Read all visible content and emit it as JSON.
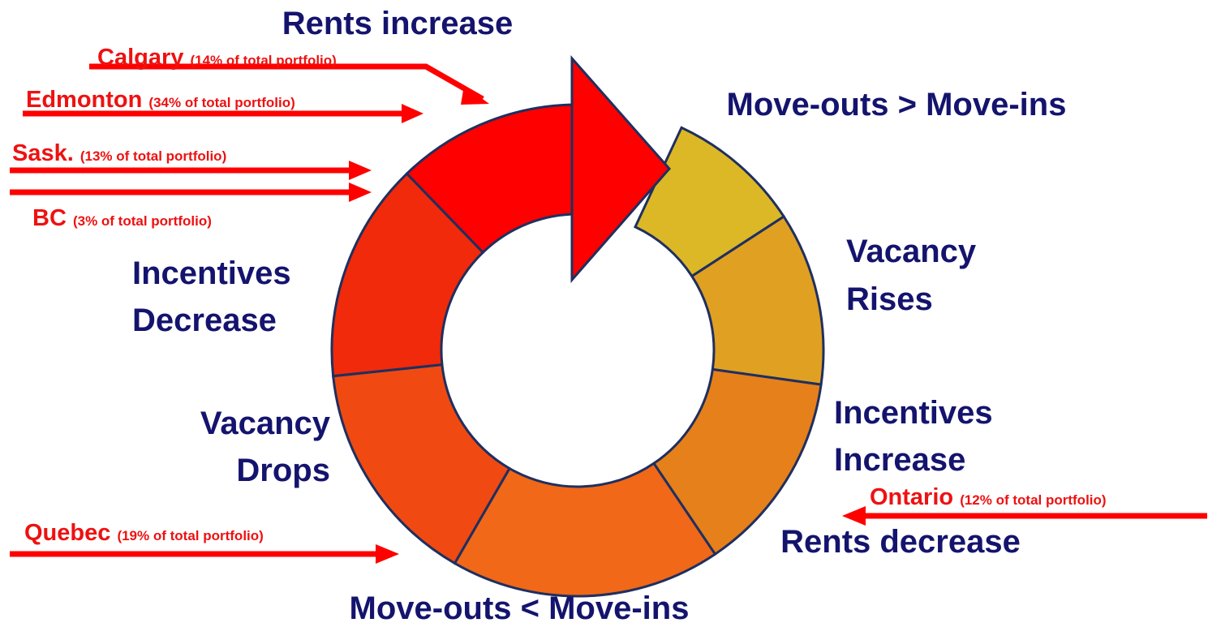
{
  "title": "Rents increase",
  "stages": [
    {
      "lines": [
        "Move-outs > Move-ins"
      ]
    },
    {
      "lines": [
        "Vacancy",
        "Rises"
      ]
    },
    {
      "lines": [
        "Incentives",
        "Increase"
      ]
    },
    {
      "lines": [
        "Rents decrease"
      ]
    },
    {
      "lines": [
        "Move-outs < Move-ins"
      ]
    },
    {
      "lines": [
        "Vacancy",
        "Drops"
      ]
    },
    {
      "lines": [
        "Incentives",
        "Decrease"
      ]
    }
  ],
  "regions": [
    {
      "name": "Calgary",
      "share": "(14% of total portfolio)"
    },
    {
      "name": "Edmonton",
      "share": "(34% of total portfolio)"
    },
    {
      "name": "Sask.",
      "share": "(13% of total portfolio)"
    },
    {
      "name": "BC",
      "share": "(3% of total portfolio)"
    },
    {
      "name": "Quebec",
      "share": "(19% of total portfolio)"
    },
    {
      "name": "Ontario",
      "share": "(12% of total portfolio)"
    }
  ]
}
